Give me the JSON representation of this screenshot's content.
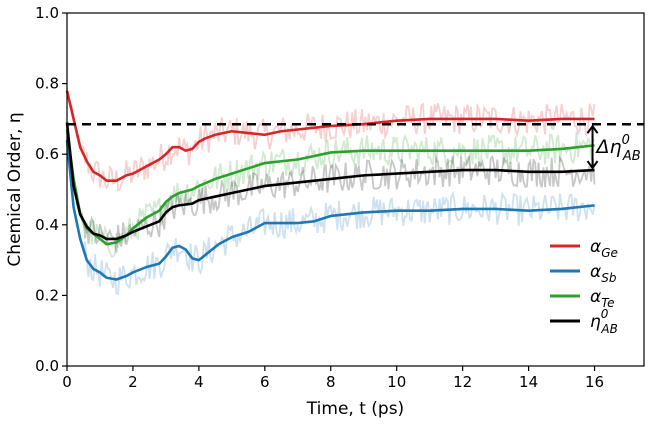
{
  "chart_data": {
    "type": "line",
    "xlabel": "Time, t (ps)",
    "ylabel": "Chemical Order, η",
    "xlim": [
      0,
      17.5
    ],
    "ylim": [
      0.0,
      1.0
    ],
    "xticks": [
      "0",
      "2",
      "4",
      "6",
      "8",
      "10",
      "12",
      "14",
      "16"
    ],
    "yticks": [
      "0.0",
      "0.2",
      "0.4",
      "0.6",
      "0.8",
      "1.0"
    ],
    "grid": false,
    "legend_position": "lower-right",
    "reference_line": {
      "y": 0.685,
      "style": "dashed",
      "color": "#000000"
    },
    "annotation": {
      "base": "Δη",
      "sup": "0",
      "sub": "AB",
      "y_from": 0.685,
      "y_to": 0.555,
      "x": 16
    },
    "series": [
      {
        "name": "αGe",
        "legend_base": "α",
        "legend_sub": "Ge",
        "color": "#d62728",
        "x": [
          0,
          0.2,
          0.4,
          0.6,
          0.8,
          1.0,
          1.2,
          1.5,
          1.8,
          2.0,
          2.4,
          2.8,
          3.0,
          3.2,
          3.4,
          3.6,
          3.8,
          4.0,
          4.2,
          4.5,
          5.0,
          5.5,
          6.0,
          6.5,
          7.0,
          7.5,
          8.0,
          9.0,
          10.0,
          11.0,
          12.0,
          13.0,
          14.0,
          15.0,
          16.0
        ],
        "values": [
          0.78,
          0.7,
          0.62,
          0.58,
          0.55,
          0.54,
          0.525,
          0.525,
          0.54,
          0.545,
          0.565,
          0.585,
          0.6,
          0.62,
          0.62,
          0.61,
          0.615,
          0.635,
          0.645,
          0.655,
          0.665,
          0.66,
          0.655,
          0.665,
          0.67,
          0.675,
          0.68,
          0.685,
          0.695,
          0.7,
          0.7,
          0.7,
          0.695,
          0.7,
          0.7
        ]
      },
      {
        "name": "αSb",
        "legend_base": "α",
        "legend_sub": "Sb",
        "color": "#1f77b4",
        "x": [
          0,
          0.2,
          0.4,
          0.6,
          0.8,
          1.0,
          1.2,
          1.5,
          1.8,
          2.0,
          2.4,
          2.8,
          3.0,
          3.2,
          3.4,
          3.6,
          3.8,
          4.0,
          4.2,
          4.6,
          5.0,
          5.5,
          6.0,
          6.5,
          7.0,
          7.5,
          8.0,
          9.0,
          10.0,
          11.0,
          12.0,
          13.0,
          14.0,
          15.0,
          16.0
        ],
        "values": [
          0.64,
          0.45,
          0.36,
          0.3,
          0.275,
          0.265,
          0.25,
          0.245,
          0.255,
          0.265,
          0.28,
          0.29,
          0.31,
          0.335,
          0.34,
          0.33,
          0.305,
          0.3,
          0.315,
          0.345,
          0.365,
          0.38,
          0.405,
          0.405,
          0.405,
          0.41,
          0.425,
          0.435,
          0.44,
          0.44,
          0.445,
          0.445,
          0.44,
          0.445,
          0.455
        ]
      },
      {
        "name": "αTe",
        "legend_base": "α",
        "legend_sub": "Te",
        "color": "#2ca02c",
        "x": [
          0,
          0.2,
          0.4,
          0.6,
          0.8,
          1.0,
          1.2,
          1.5,
          1.8,
          2.0,
          2.4,
          2.8,
          3.0,
          3.2,
          3.4,
          3.8,
          4.0,
          4.5,
          5.0,
          5.5,
          6.0,
          6.5,
          7.0,
          7.5,
          8.0,
          9.0,
          10.0,
          11.0,
          12.0,
          13.0,
          14.0,
          15.0,
          16.0
        ],
        "values": [
          0.67,
          0.53,
          0.43,
          0.39,
          0.375,
          0.36,
          0.345,
          0.35,
          0.37,
          0.39,
          0.42,
          0.44,
          0.465,
          0.48,
          0.49,
          0.5,
          0.51,
          0.53,
          0.545,
          0.56,
          0.575,
          0.58,
          0.585,
          0.595,
          0.605,
          0.61,
          0.61,
          0.61,
          0.61,
          0.61,
          0.61,
          0.615,
          0.625
        ]
      },
      {
        "name": "ηAB0",
        "legend_base": "η",
        "legend_sub": "AB",
        "legend_sup": "0",
        "color": "#000000",
        "x": [
          0,
          0.2,
          0.4,
          0.6,
          0.8,
          1.0,
          1.2,
          1.5,
          1.8,
          2.0,
          2.4,
          2.8,
          3.0,
          3.2,
          3.4,
          3.8,
          4.0,
          4.5,
          5.0,
          5.5,
          6.0,
          6.5,
          7.0,
          7.5,
          8.0,
          9.0,
          10.0,
          11.0,
          12.0,
          13.0,
          14.0,
          15.0,
          16.0
        ],
        "values": [
          0.69,
          0.51,
          0.43,
          0.395,
          0.375,
          0.37,
          0.36,
          0.36,
          0.37,
          0.38,
          0.395,
          0.41,
          0.435,
          0.45,
          0.455,
          0.46,
          0.47,
          0.48,
          0.49,
          0.5,
          0.51,
          0.515,
          0.52,
          0.525,
          0.53,
          0.54,
          0.545,
          0.55,
          0.555,
          0.555,
          0.55,
          0.55,
          0.555
        ]
      }
    ]
  }
}
